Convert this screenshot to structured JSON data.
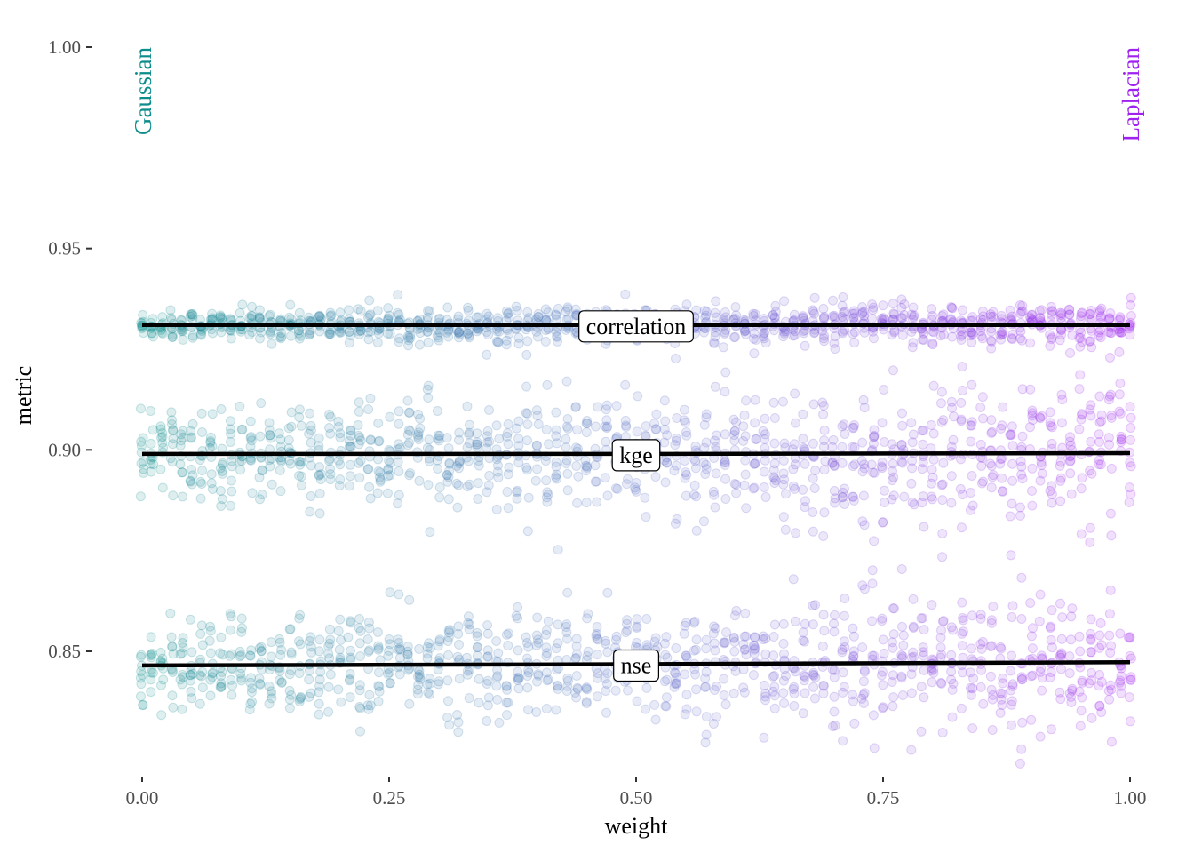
{
  "chart_data": {
    "type": "scatter",
    "title": "",
    "xlabel": "weight",
    "ylabel": "metric",
    "xlim": [
      0,
      1
    ],
    "ylim": [
      0.82,
      1.0
    ],
    "x_ticks": [
      "0.00",
      "0.25",
      "0.50",
      "0.75",
      "1.00"
    ],
    "y_ticks": [
      "0.85",
      "0.90",
      "0.95",
      "1.00"
    ],
    "grid": false,
    "color_scale": {
      "low": "#0d8c8c",
      "mid": "#5b72c7",
      "high": "#a020f0"
    },
    "annotations": [
      {
        "text": "Gaussian",
        "x": 0.0,
        "y": 1.0,
        "color": "#0d8c8c"
      },
      {
        "text": "Laplacian",
        "x": 1.0,
        "y": 1.0,
        "color": "#a020f0"
      }
    ],
    "series": [
      {
        "name": "correlation",
        "label_x": 0.5,
        "trend": [
          [
            0.0,
            0.931
          ],
          [
            0.5,
            0.931
          ],
          [
            1.0,
            0.931
          ]
        ],
        "spread": 0.0018,
        "jitter_extent": 0.0065
      },
      {
        "name": "kge",
        "label_x": 0.5,
        "trend": [
          [
            0.0,
            0.899
          ],
          [
            0.5,
            0.899
          ],
          [
            1.0,
            0.8992
          ]
        ],
        "spread": 0.0055,
        "jitter_extent": 0.019
      },
      {
        "name": "nse",
        "label_x": 0.5,
        "trend": [
          [
            0.0,
            0.8465
          ],
          [
            0.5,
            0.8468
          ],
          [
            1.0,
            0.8473
          ]
        ],
        "spread": 0.0055,
        "jitter_extent": 0.021
      }
    ]
  }
}
